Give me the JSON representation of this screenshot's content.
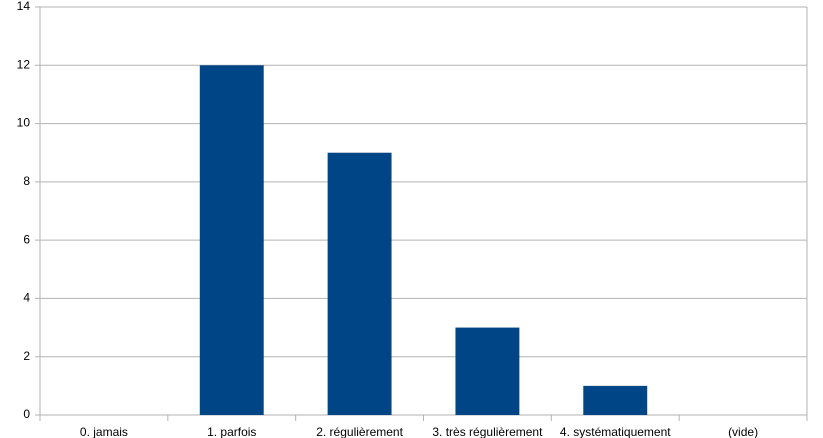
{
  "chart_data": {
    "type": "bar",
    "categories": [
      "0. jamais",
      "1. parfois",
      "2. régulièrement",
      "3. très régulièrement",
      "4. systématiquement",
      "(vide)"
    ],
    "values": [
      0,
      12,
      9,
      3,
      1,
      0
    ],
    "color": "#004586",
    "ylim": [
      0,
      14
    ],
    "yticks": [
      0,
      2,
      4,
      6,
      8,
      10,
      12,
      14
    ],
    "grid": true
  }
}
